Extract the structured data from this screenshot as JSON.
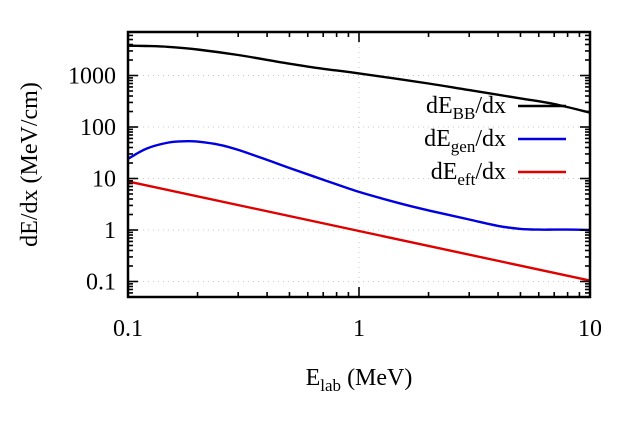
{
  "chart_data": {
    "type": "line",
    "title": "",
    "xlabel": {
      "main": "E",
      "sub": "lab",
      "tail": " (MeV)"
    },
    "ylabel": "dE/dx (MeV/cm)",
    "xscale": "log",
    "yscale": "log",
    "xlim": [
      0.1,
      10
    ],
    "ylim": [
      0.05,
      7000
    ],
    "grid": true,
    "legend_position": "right",
    "x_ticks": [
      {
        "value": 0.1,
        "label": "0.1"
      },
      {
        "value": 1,
        "label": "1"
      },
      {
        "value": 10,
        "label": "10"
      }
    ],
    "y_ticks": [
      {
        "value": 0.1,
        "label": "0.1"
      },
      {
        "value": 1,
        "label": "1"
      },
      {
        "value": 10,
        "label": "10"
      },
      {
        "value": 100,
        "label": "100"
      },
      {
        "value": 1000,
        "label": "1000"
      }
    ],
    "series": [
      {
        "key": "bb",
        "label_main": "dE",
        "label_sub": "BB",
        "label_tail": "/dx",
        "color": "#000000",
        "x": [
          0.1,
          0.12,
          0.15,
          0.2,
          0.3,
          0.5,
          0.7,
          1,
          2,
          3,
          5,
          7,
          10
        ],
        "y": [
          3800,
          3750,
          3600,
          3200,
          2500,
          1700,
          1350,
          1100,
          700,
          520,
          360,
          280,
          190
        ]
      },
      {
        "key": "gen",
        "label_main": "dE",
        "label_sub": "gen",
        "label_tail": "/dx",
        "color": "#0000e0",
        "x": [
          0.1,
          0.12,
          0.15,
          0.18,
          0.2,
          0.25,
          0.3,
          0.4,
          0.5,
          0.7,
          1,
          1.5,
          2,
          3,
          4,
          5,
          6,
          7,
          8,
          10
        ],
        "y": [
          24,
          38,
          50,
          53,
          52,
          45,
          36,
          23,
          16,
          9.5,
          5.5,
          3.3,
          2.4,
          1.6,
          1.2,
          1.05,
          1.02,
          1.02,
          1.02,
          1.0
        ]
      },
      {
        "key": "eft",
        "label_main": "dE",
        "label_sub": "eft",
        "label_tail": "/dx",
        "color": "#e00000",
        "x": [
          0.1,
          10
        ],
        "y": [
          8.8,
          0.104
        ]
      }
    ]
  }
}
